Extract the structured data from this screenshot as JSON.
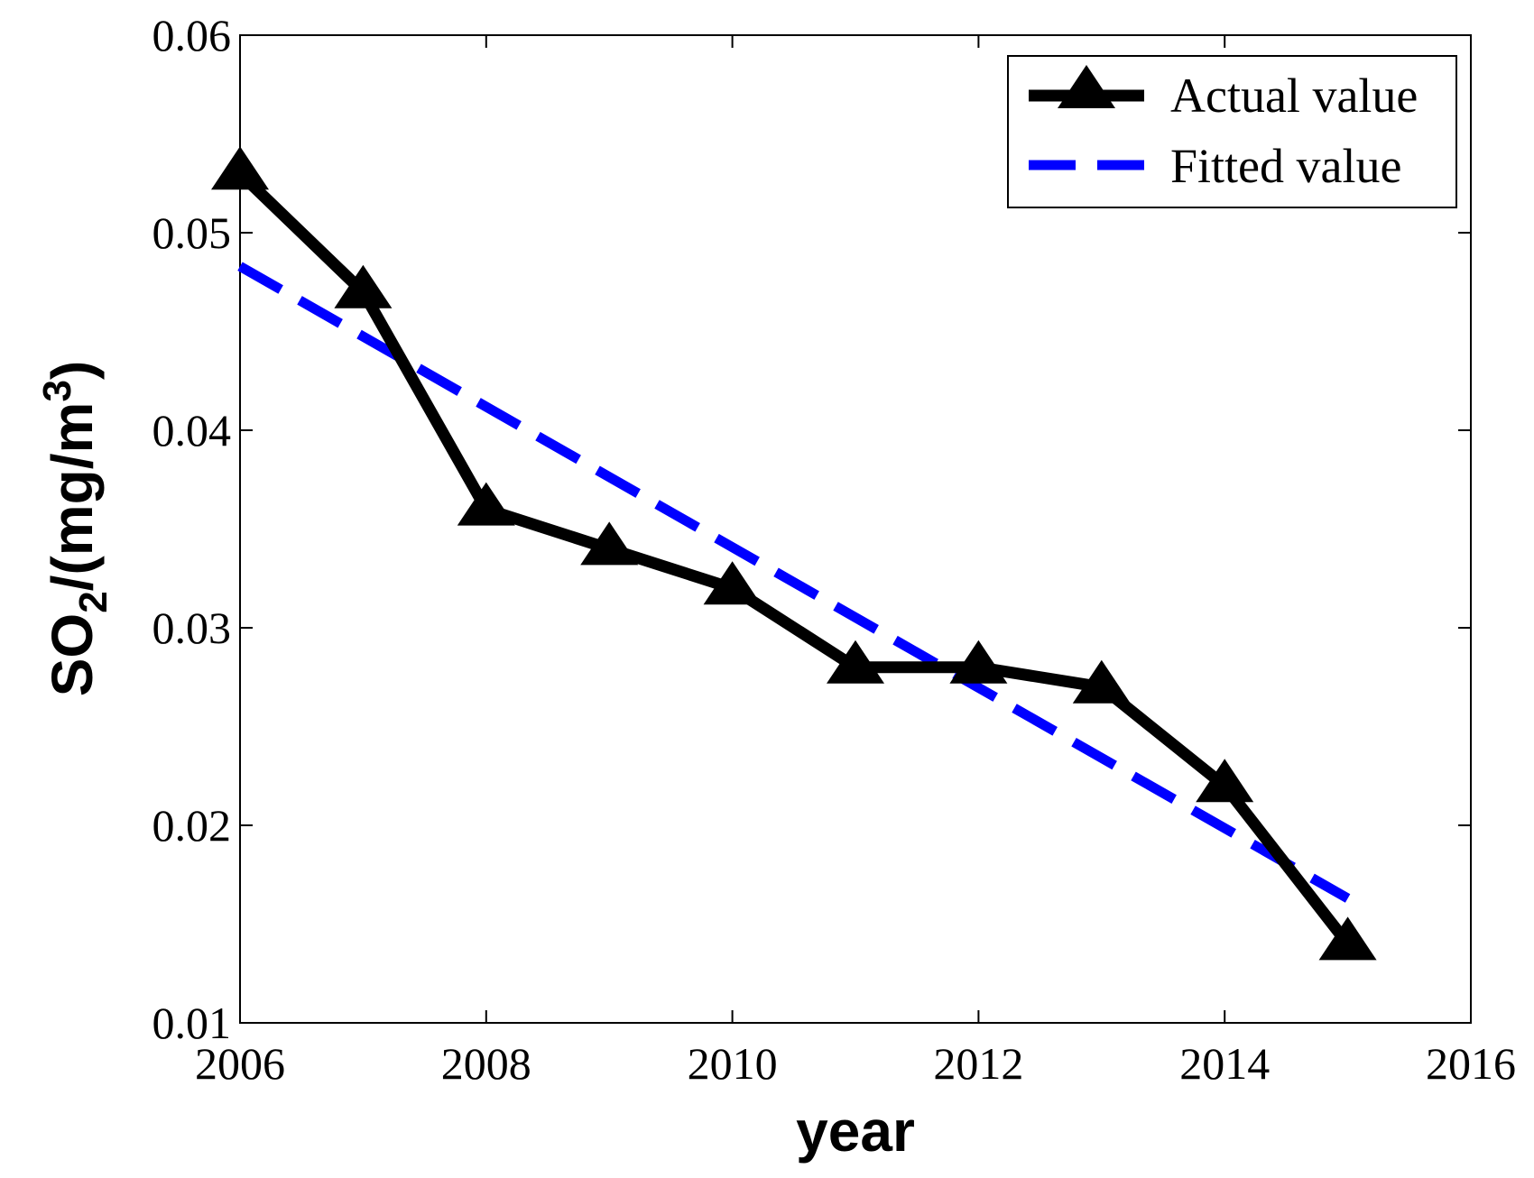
{
  "chart_data": {
    "type": "line",
    "title": "",
    "xlabel": "year",
    "ylabel": "SO2/(mg/m3)",
    "ylabel_parts": {
      "base": "SO",
      "sub": "2",
      "mid": "/(mg/m",
      "sup": "3",
      "end": ")"
    },
    "xlim": [
      2006,
      2016
    ],
    "ylim": [
      0.01,
      0.06
    ],
    "xticks": [
      2006,
      2008,
      2010,
      2012,
      2014,
      2016
    ],
    "xtick_labels": [
      "2006",
      "2008",
      "2010",
      "2012",
      "2014",
      "2016"
    ],
    "yticks": [
      0.01,
      0.02,
      0.03,
      0.04,
      0.05,
      0.06
    ],
    "ytick_labels": [
      "0.01",
      "0.02",
      "0.03",
      "0.04",
      "0.05",
      "0.06"
    ],
    "grid": false,
    "legend_position": "top-right",
    "series": [
      {
        "name": "Actual value",
        "style": "solid",
        "marker": "triangle",
        "color": "#000000",
        "x": [
          2006,
          2007,
          2008,
          2009,
          2010,
          2011,
          2012,
          2013,
          2014,
          2015
        ],
        "values": [
          0.053,
          0.047,
          0.036,
          0.034,
          0.032,
          0.028,
          0.028,
          0.027,
          0.022,
          0.014
        ]
      },
      {
        "name": "Fitted value",
        "style": "dashed",
        "marker": "none",
        "color": "#0000ff",
        "x": [
          2006,
          2015
        ],
        "values": [
          0.0483,
          0.0163
        ]
      }
    ]
  }
}
